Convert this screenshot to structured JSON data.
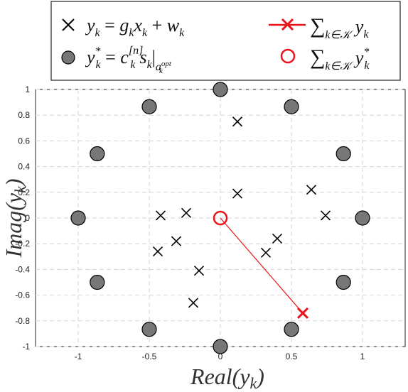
{
  "chart_data": {
    "type": "scatter",
    "xlabel": "Real(y_k)",
    "ylabel": "Imag(y_k)",
    "xlim": [
      -1.3,
      1.3
    ],
    "ylim": [
      -1,
      1
    ],
    "grid": true,
    "legend_placement": "top",
    "x_ticks": [
      "-1",
      "-0.5",
      "0",
      "0.5",
      "1"
    ],
    "y_ticks": [
      "-1",
      "-0.8",
      "-0.6",
      "-0.4",
      "-0.2",
      "0",
      "0.2",
      "0.4",
      "0.6",
      "0.8",
      "1"
    ],
    "legend": [
      {
        "marker": "x",
        "label": "y_k = g_k x_k + w_k"
      },
      {
        "marker": "red-x-line",
        "label": "∑_{k∈K} y_k"
      },
      {
        "marker": "gray-circle",
        "label": "y*_k = c_k^[n] s_k |_{a_k^opt}"
      },
      {
        "marker": "red-circle",
        "label": "∑_{k∈K} y*_k"
      }
    ],
    "series": [
      {
        "name": "y_k = g_k x_k + w_k",
        "marker": "x",
        "color": "#000000",
        "points": [
          [
            0.12,
            0.75
          ],
          [
            0.64,
            0.22
          ],
          [
            0.74,
            0.02
          ],
          [
            0.12,
            0.19
          ],
          [
            -0.24,
            0.04
          ],
          [
            -0.42,
            0.02
          ],
          [
            -0.31,
            -0.18
          ],
          [
            -0.44,
            -0.26
          ],
          [
            -0.15,
            -0.41
          ],
          [
            -0.19,
            -0.66
          ],
          [
            0.32,
            -0.27
          ],
          [
            0.4,
            -0.16
          ]
        ]
      },
      {
        "name": "y*_k = c_k^[n] s_k |_{a_k^opt}",
        "marker": "circle",
        "color": "#777777",
        "points": [
          [
            0,
            1
          ],
          [
            0.5,
            0.866
          ],
          [
            0.866,
            0.5
          ],
          [
            1,
            0
          ],
          [
            0.866,
            -0.5
          ],
          [
            0.5,
            -0.866
          ],
          [
            0,
            -1
          ],
          [
            -0.5,
            -0.866
          ],
          [
            -0.866,
            -0.5
          ],
          [
            -1,
            0
          ],
          [
            -0.866,
            0.5
          ],
          [
            -0.5,
            0.866
          ]
        ]
      },
      {
        "name": "∑_{k∈K} y_k",
        "marker": "x",
        "color": "#e8121b",
        "points": [
          [
            0.58,
            -0.74
          ]
        ]
      },
      {
        "name": "∑_{k∈K} y*_k",
        "marker": "open-circle",
        "color": "#e8121b",
        "points": [
          [
            0,
            0
          ]
        ]
      }
    ],
    "connector": {
      "from": [
        0,
        0
      ],
      "to": [
        0.58,
        -0.74
      ],
      "color": "#e8121b"
    }
  }
}
